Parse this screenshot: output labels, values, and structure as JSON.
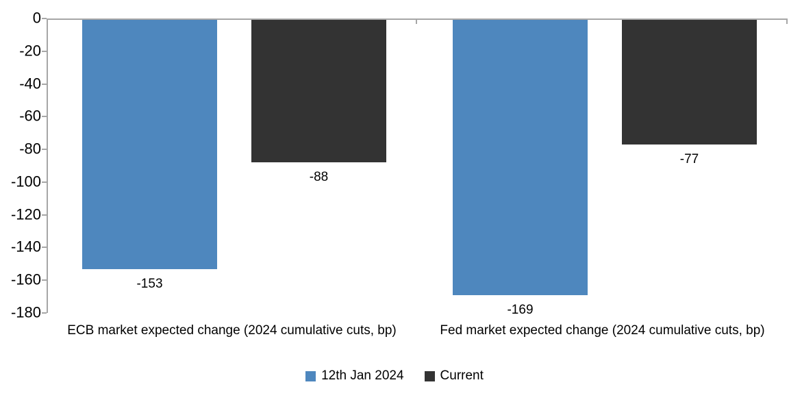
{
  "chart_data": {
    "type": "bar",
    "title": "",
    "xlabel": "",
    "ylabel": "",
    "categories": [
      "ECB market expected change (2024 cumulative cuts, bp)",
      "Fed market expected change (2024 cumulative cuts, bp)"
    ],
    "series": [
      {
        "name": "12th Jan 2024",
        "color": "#4E87BE",
        "values": [
          -153,
          -169
        ]
      },
      {
        "name": "Current",
        "color": "#333333",
        "values": [
          -88,
          -77
        ]
      }
    ],
    "data_labels": [
      [
        "-153",
        "-169"
      ],
      [
        "-88",
        "-77"
      ]
    ],
    "ylim": [
      -180,
      0
    ],
    "y_tick_step": 20,
    "y_tick_labels": [
      "0",
      "-20",
      "-40",
      "-60",
      "-80",
      "-100",
      "-120",
      "-140",
      "-160",
      "-180"
    ],
    "grid": false,
    "legend_position": "bottom",
    "colors": {
      "axis": "#A6A6A6",
      "text": "#000000",
      "background": "#FFFFFF"
    }
  }
}
